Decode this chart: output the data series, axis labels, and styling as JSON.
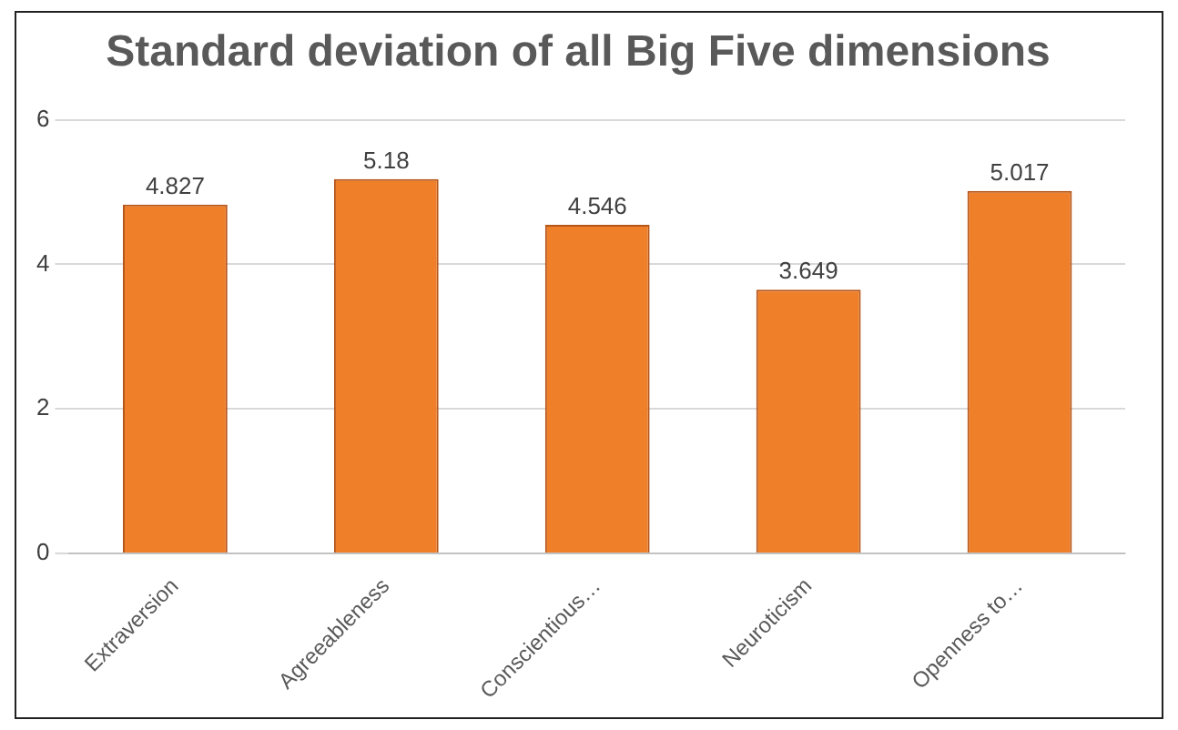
{
  "chart_data": {
    "type": "bar",
    "title": "Standard deviation of all Big Five dimensions",
    "categories": [
      "Extraversion",
      "Agreeableness",
      "Conscientious…",
      "Neuroticism",
      "Openness to…"
    ],
    "values": [
      4.827,
      5.18,
      4.546,
      3.649,
      5.017
    ],
    "color": "#f07f2a",
    "ylim": [
      0,
      6
    ],
    "yticks": [
      0,
      2,
      4,
      6
    ],
    "grid": "y",
    "data_labels": true
  }
}
